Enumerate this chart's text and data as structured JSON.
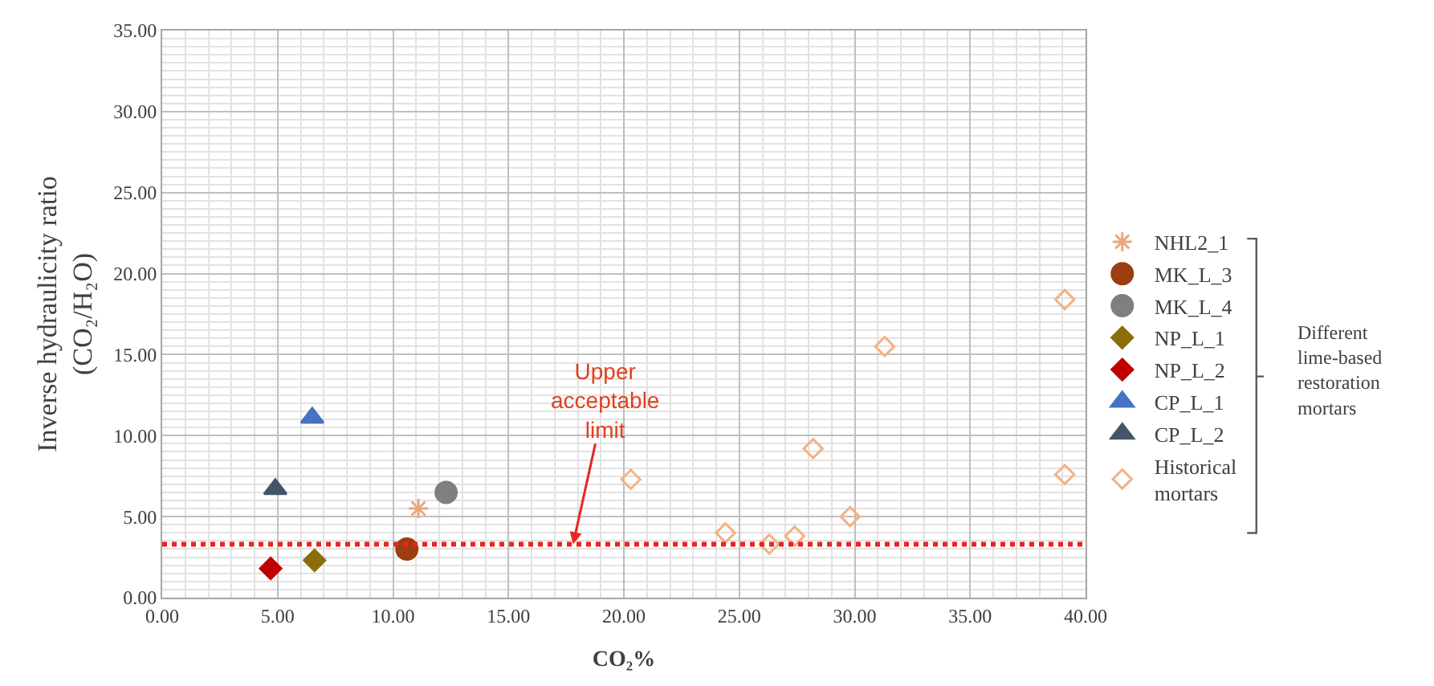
{
  "chart_data": {
    "type": "scatter",
    "xlabel": "CO₂%",
    "ylabel": "Inverse hydraulicity ratio\n(CO₂/H₂O)",
    "xlim": [
      0,
      40
    ],
    "xticks": [
      {
        "value": 0,
        "label": "0.00"
      },
      {
        "value": 5,
        "label": "5.00"
      },
      {
        "value": 10,
        "label": "10.00"
      },
      {
        "value": 15,
        "label": "15.00"
      },
      {
        "value": 20,
        "label": "20.00"
      },
      {
        "value": 25,
        "label": "25.00"
      },
      {
        "value": 30,
        "label": "30.00"
      },
      {
        "value": 35,
        "label": "35.00"
      },
      {
        "value": 40,
        "label": "40.00"
      }
    ],
    "ylim": [
      0,
      35
    ],
    "yticks": [
      {
        "value": 0,
        "label": "0.00"
      },
      {
        "value": 5,
        "label": "5.00"
      },
      {
        "value": 10,
        "label": "10.00"
      },
      {
        "value": 15,
        "label": "15.00"
      },
      {
        "value": 20,
        "label": "20.00"
      },
      {
        "value": 25,
        "label": "25.00"
      },
      {
        "value": 30,
        "label": "30.00"
      },
      {
        "value": 35,
        "label": "35.00"
      }
    ],
    "grid": true,
    "legend": "right",
    "series": [
      {
        "name": "NHL2_1",
        "color": "#e9a77f",
        "marker": "cross",
        "x": [
          11.1
        ],
        "values": [
          5.5
        ]
      },
      {
        "name": "MK_L_3",
        "color": "#9c3d12",
        "marker": "circle",
        "x": [
          10.6
        ],
        "values": [
          3.0
        ]
      },
      {
        "name": "MK_L_4",
        "color": "#7f7f7f",
        "marker": "circle",
        "x": [
          12.3
        ],
        "values": [
          6.5
        ]
      },
      {
        "name": "NP_L_1",
        "color": "#8c6d0a",
        "marker": "diamond",
        "x": [
          6.6
        ],
        "values": [
          2.3
        ]
      },
      {
        "name": "NP_L_2",
        "color": "#c00000",
        "marker": "diamond",
        "x": [
          4.7
        ],
        "values": [
          1.8
        ]
      },
      {
        "name": "CP_L_1",
        "color": "#4472c4",
        "marker": "triangle",
        "x": [
          6.5
        ],
        "values": [
          11.1
        ]
      },
      {
        "name": "CP_L_2",
        "color": "#44546a",
        "marker": "triangle",
        "x": [
          4.9
        ],
        "values": [
          6.7
        ]
      },
      {
        "name": "Historical\nmortars",
        "color": "#f4b183",
        "marker": "diamond-open",
        "x": [
          20.3,
          24.4,
          26.3,
          27.4,
          28.2,
          29.8,
          31.3,
          39.1,
          39.1
        ],
        "values": [
          7.3,
          4.0,
          3.3,
          3.8,
          9.2,
          5.0,
          15.5,
          18.4,
          7.6
        ]
      }
    ],
    "ref_lines": [
      {
        "axis": "y",
        "value": 3.3,
        "color": "#e8251f",
        "line_style": "dotted"
      }
    ],
    "annotations": [
      {
        "text": "Upper\nacceptable\nlimit",
        "x": 17.8,
        "y": 3.3
      },
      "Different\nlime-based\nrestoration\nmortars"
    ]
  }
}
